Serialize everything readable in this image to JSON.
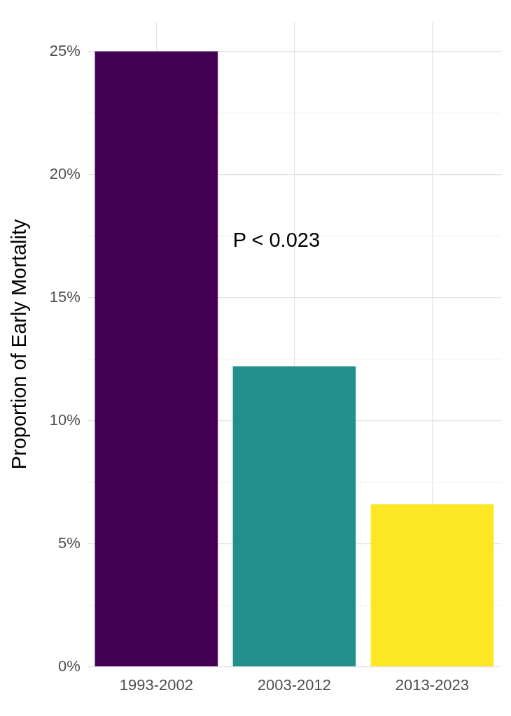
{
  "chart_data": {
    "type": "bar",
    "ylabel": "Proportion of Early Mortality",
    "categories": [
      "1993-2002",
      "2003-2012",
      "2013-2023"
    ],
    "values": [
      25,
      12.2,
      6.6
    ],
    "colors": [
      "#440154",
      "#21908c",
      "#fde725"
    ],
    "ylim": [
      0,
      26.2
    ],
    "yticks": [
      {
        "value": 0,
        "label": "0%"
      },
      {
        "value": 2.5,
        "label": null
      },
      {
        "value": 5,
        "label": "5%"
      },
      {
        "value": 7.5,
        "label": null
      },
      {
        "value": 10,
        "label": "10%"
      },
      {
        "value": 12.5,
        "label": null
      },
      {
        "value": 15,
        "label": "15%"
      },
      {
        "value": 17.5,
        "label": null
      },
      {
        "value": 20,
        "label": "20%"
      },
      {
        "value": 22.5,
        "label": null
      },
      {
        "value": 25,
        "label": "25%"
      }
    ],
    "grid": true,
    "legend": false,
    "annotations": [
      "P < 0.023"
    ]
  }
}
